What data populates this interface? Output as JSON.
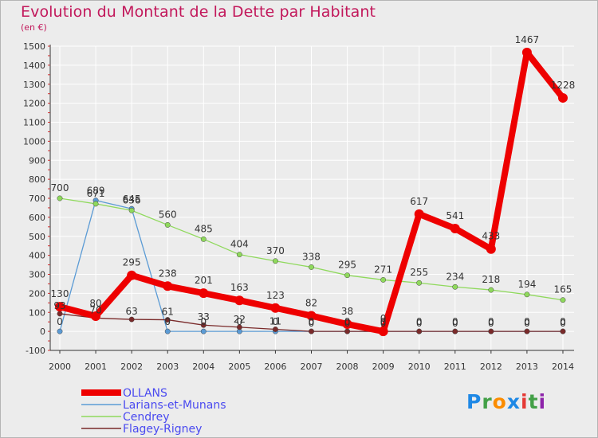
{
  "title": "Evolution du Montant de la Dette par Habitant",
  "subtitle": "(en €)",
  "brand": "Proxiti",
  "chart_data": {
    "type": "line",
    "title": "Evolution du Montant de la Dette par Habitant",
    "ylabel": "(en €)",
    "xlabel": "",
    "x": [
      2000,
      2001,
      2002,
      2003,
      2004,
      2005,
      2006,
      2007,
      2008,
      2009,
      2010,
      2011,
      2012,
      2013,
      2014
    ],
    "ylim": [
      -100,
      1500
    ],
    "yticks": [
      -100,
      0,
      100,
      200,
      300,
      400,
      500,
      600,
      700,
      800,
      900,
      1000,
      1100,
      1200,
      1300,
      1400,
      1500
    ],
    "grid": "horizontal",
    "legend": "bottom-left",
    "series": [
      {
        "name": "Larians-et-Munans",
        "color": "#5b9bd5",
        "values": [
          0,
          689,
          645,
          0,
          0,
          0,
          0,
          0,
          0,
          0,
          0,
          0,
          0,
          0,
          0
        ]
      },
      {
        "name": "Cendrey",
        "color": "#8fd95c",
        "values": [
          700,
          671,
          636,
          560,
          485,
          404,
          370,
          338,
          295,
          271,
          255,
          234,
          218,
          194,
          165
        ]
      },
      {
        "name": "Flagey-Rigney",
        "color": "#7a2a2a",
        "values": [
          93,
          70,
          63,
          61,
          33,
          22,
          11,
          0,
          0,
          0,
          0,
          0,
          0,
          0,
          0
        ]
      },
      {
        "name": "OLLANS",
        "color": "#ee0000",
        "values": [
          130,
          80,
          295,
          238,
          201,
          163,
          123,
          82,
          38,
          0,
          617,
          541,
          433,
          1467,
          1228
        ]
      }
    ]
  }
}
